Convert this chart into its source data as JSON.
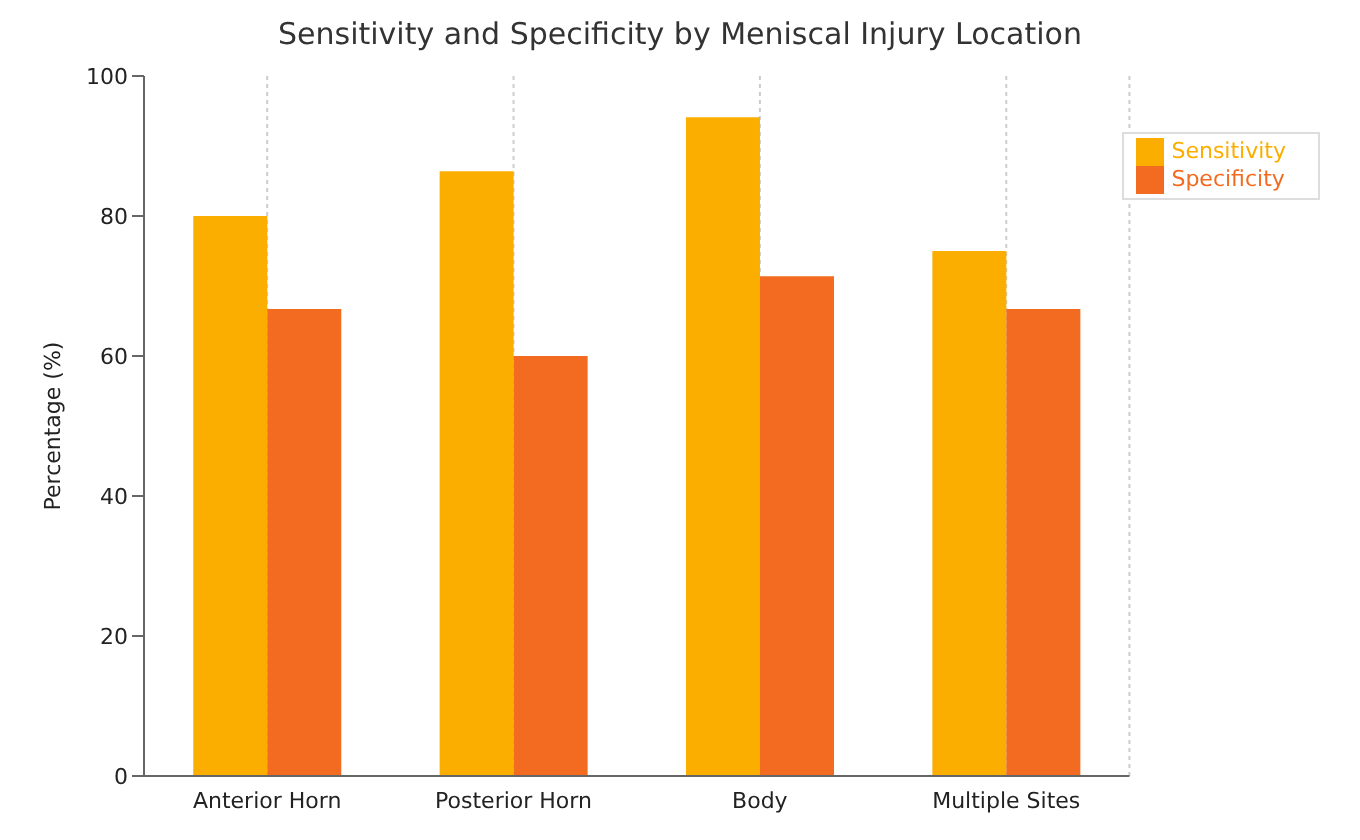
{
  "chart_data": {
    "type": "bar",
    "title": "Sensitivity and Specificity by Meniscal Injury Location",
    "ylabel": "Percentage (%)",
    "categories": [
      "Anterior Horn",
      "Posterior Horn",
      "Body",
      "Multiple Sites"
    ],
    "series": [
      {
        "name": "Sensitivity",
        "color": "#fbae00",
        "values": [
          80,
          86.4,
          94.1,
          75
        ]
      },
      {
        "name": "Specificity",
        "color": "#f26b21",
        "values": [
          66.7,
          60,
          71.4,
          66.7
        ]
      }
    ],
    "ylim": [
      0,
      100
    ],
    "yticks": [
      0,
      20,
      40,
      60,
      80,
      100
    ],
    "grid": "x",
    "legend": "top right"
  }
}
